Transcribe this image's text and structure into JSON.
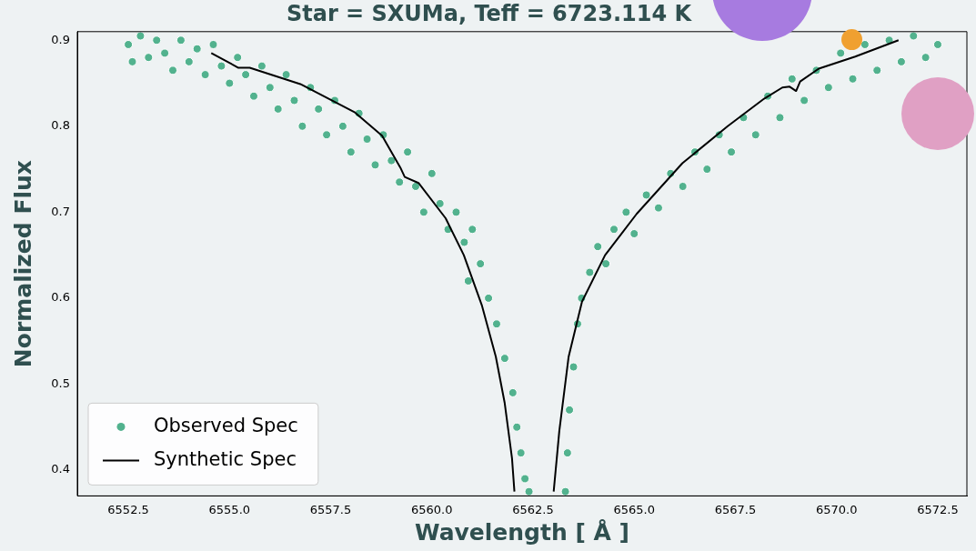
{
  "chart_data": {
    "type": "scatter",
    "title": "Star = SXUMa, Teff = 6723.114 K",
    "xlabel": "Wavelength [ Å ]",
    "ylabel": "Normalized Flux",
    "xlim": [
      6551.24,
      6573.22
    ],
    "xticks": [
      {
        "value": 6552.5,
        "label": "6552.5"
      },
      {
        "value": 6555,
        "label": "6555.0"
      },
      {
        "value": 6557.5,
        "label": "6557.5"
      },
      {
        "value": 6560,
        "label": "6560.0"
      },
      {
        "value": 6562.5,
        "label": "6562.5"
      },
      {
        "value": 6565,
        "label": "6565.0"
      },
      {
        "value": 6567.5,
        "label": "6567.5"
      },
      {
        "value": 6570,
        "label": "6570.0"
      },
      {
        "value": 6572.5,
        "label": "6572.5"
      }
    ],
    "ylim": [
      0.37,
      0.91
    ],
    "yticks": [
      0.4,
      0.5,
      0.6,
      0.7,
      0.8,
      0.9
    ],
    "grid": false,
    "legend": "bottom left",
    "series": [
      {
        "name": "Observed Spec",
        "marker": "circle",
        "color": "#52b28e",
        "x": [
          6552.5,
          6552.6,
          6552.8,
          6553.0,
          6553.2,
          6553.4,
          6553.6,
          6553.8,
          6554.0,
          6554.2,
          6554.4,
          6554.6,
          6554.8,
          6555.0,
          6555.2,
          6555.4,
          6555.6,
          6555.8,
          6556.0,
          6556.2,
          6556.4,
          6556.6,
          6556.8,
          6557.0,
          6557.2,
          6557.4,
          6557.6,
          6557.8,
          6558.0,
          6558.2,
          6558.4,
          6558.6,
          6558.8,
          6559.0,
          6559.2,
          6559.4,
          6559.6,
          6559.8,
          6560.0,
          6560.2,
          6560.4,
          6560.6,
          6560.8,
          6560.9,
          6561.0,
          6561.2,
          6561.4,
          6561.6,
          6561.8,
          6562.0,
          6562.1,
          6562.2,
          6562.3,
          6562.4,
          6563.3,
          6563.35,
          6563.4,
          6563.5,
          6563.6,
          6563.7,
          6563.9,
          6564.1,
          6564.3,
          6564.5,
          6564.8,
          6565.0,
          6565.3,
          6565.6,
          6565.9,
          6566.2,
          6566.5,
          6566.8,
          6567.1,
          6567.4,
          6567.7,
          6568.0,
          6568.3,
          6568.6,
          6568.9,
          6569.2,
          6569.5,
          6569.8,
          6570.1,
          6570.4,
          6570.7,
          6571.0,
          6571.3,
          6571.6,
          6571.9,
          6572.2,
          6572.5
        ],
        "values": [
          0.895,
          0.875,
          0.905,
          0.88,
          0.9,
          0.885,
          0.865,
          0.9,
          0.875,
          0.89,
          0.86,
          0.895,
          0.87,
          0.85,
          0.88,
          0.86,
          0.835,
          0.87,
          0.845,
          0.82,
          0.86,
          0.83,
          0.8,
          0.845,
          0.82,
          0.79,
          0.83,
          0.8,
          0.77,
          0.815,
          0.785,
          0.755,
          0.79,
          0.76,
          0.735,
          0.77,
          0.73,
          0.7,
          0.745,
          0.71,
          0.68,
          0.7,
          0.665,
          0.62,
          0.68,
          0.64,
          0.6,
          0.57,
          0.53,
          0.49,
          0.45,
          0.42,
          0.39,
          0.375,
          0.375,
          0.42,
          0.47,
          0.52,
          0.57,
          0.6,
          0.63,
          0.66,
          0.64,
          0.68,
          0.7,
          0.675,
          0.72,
          0.705,
          0.745,
          0.73,
          0.77,
          0.75,
          0.79,
          0.77,
          0.81,
          0.79,
          0.835,
          0.81,
          0.855,
          0.83,
          0.865,
          0.845,
          0.885,
          0.855,
          0.895,
          0.865,
          0.9,
          0.875,
          0.905,
          0.88,
          0.895
        ]
      },
      {
        "name": "Synthetic Spec",
        "type": "line",
        "marker": "none",
        "line_style": "solid",
        "color": "#000000",
        "x": [
          6554.55,
          6555.22,
          6555.5,
          6556.75,
          6558.1,
          6558.77,
          6559.22,
          6559.33,
          6559.67,
          6560.34,
          6560.79,
          6561.24,
          6561.58,
          6561.8,
          6561.98,
          6562.04,
          6562.5,
          6563.01,
          6563.15,
          6563.38,
          6563.71,
          6564.28,
          6565.06,
          6566.19,
          6567.31,
          6568.21,
          6568.66,
          6568.84,
          6569.0,
          6569.1,
          6569.56,
          6570.46,
          6571.53
        ],
        "values": [
          0.885,
          0.868,
          0.868,
          0.849,
          0.816,
          0.789,
          0.752,
          0.741,
          0.734,
          0.693,
          0.65,
          0.591,
          0.532,
          0.478,
          0.414,
          0.375,
          null,
          0.375,
          0.446,
          0.532,
          0.596,
          0.65,
          0.698,
          0.757,
          0.8,
          0.832,
          0.845,
          0.846,
          0.841,
          0.852,
          0.867,
          0.881,
          0.9
        ]
      }
    ]
  }
}
